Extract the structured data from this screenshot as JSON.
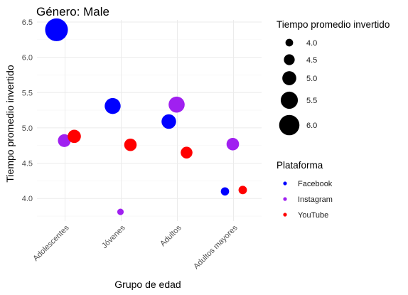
{
  "chart_data": {
    "type": "scatter",
    "title": "Género: Male",
    "xlabel": "Grupo de edad",
    "ylabel": "Tiempo promedio invertido",
    "categories": [
      "Adolescentes",
      "Jóvenes",
      "Adultos",
      "Adultos mayores"
    ],
    "ylim": [
      3.68,
      6.53
    ],
    "yticks": [
      "4.0",
      "4.5",
      "5.0",
      "5.5",
      "6.0",
      "6.5"
    ],
    "grid": true,
    "legend_position": "right",
    "series": [
      {
        "name": "Facebook",
        "color": "#0000ff",
        "values": [
          6.39,
          5.31,
          5.09,
          4.1
        ]
      },
      {
        "name": "Instagram",
        "color": "#a020f0",
        "values": [
          4.82,
          3.81,
          5.33,
          4.77
        ]
      },
      {
        "name": "YouTube",
        "color": "#ff0000",
        "values": [
          4.88,
          4.76,
          4.65,
          4.12
        ]
      }
    ],
    "size_legend": {
      "title": "Tiempo promedio invertido",
      "labels": [
        "4.0",
        "4.5",
        "5.0",
        "5.5",
        "6.0"
      ]
    },
    "color_legend": {
      "title": "Plataforma",
      "labels": [
        "Facebook",
        "Instagram",
        "YouTube"
      ]
    }
  }
}
